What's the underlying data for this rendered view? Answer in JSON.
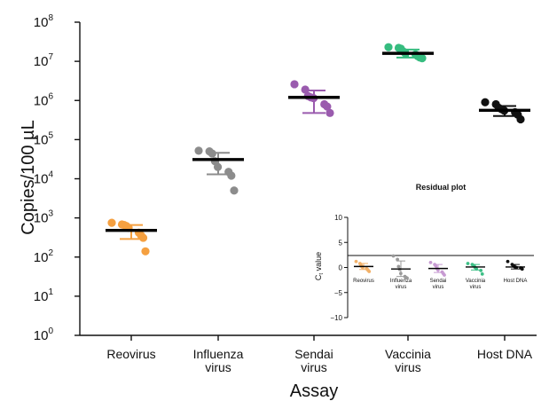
{
  "colors": {
    "Reovirus": "#F5A040",
    "Influenza virus": "#8C8C8C",
    "Sendai virus": "#9A5BAE",
    "Vaccinia virus": "#36BC7F",
    "Host DNA": "#111111",
    "inset": {
      "Reovirus": "#F2B169",
      "Influenza virus": "#9A9A9A",
      "Sendai virus": "#C79AD2",
      "Vaccinia virus": "#3CBF86",
      "Host DNA": "#111111"
    }
  },
  "chart_data": [
    {
      "id": "main",
      "type": "scatter",
      "scale": "log10",
      "ylabel": "Copies/100 µL",
      "xlabel": "Assay",
      "ylim": [
        1,
        100000000
      ],
      "y_ticks": [
        {
          "base": "10",
          "exp": "0"
        },
        {
          "base": "10",
          "exp": "1"
        },
        {
          "base": "10",
          "exp": "2"
        },
        {
          "base": "10",
          "exp": "3"
        },
        {
          "base": "10",
          "exp": "4"
        },
        {
          "base": "10",
          "exp": "5"
        },
        {
          "base": "10",
          "exp": "6"
        },
        {
          "base": "10",
          "exp": "7"
        },
        {
          "base": "10",
          "exp": "8"
        }
      ],
      "categories": [
        [
          "Reovirus"
        ],
        [
          "Influenza",
          "virus"
        ],
        [
          "Sendai",
          "virus"
        ],
        [
          "Vaccinia",
          "virus"
        ],
        [
          "Host DNA"
        ]
      ],
      "groups": [
        {
          "name": "Reovirus",
          "mean": 480,
          "sd_low": 290,
          "sd_high": 660,
          "points": [
            750,
            680,
            660,
            620,
            560,
            420,
            360,
            310,
            140
          ]
        },
        {
          "name": "Influenza virus",
          "mean": 31000,
          "sd_low": 13000,
          "sd_high": 46000,
          "points": [
            52000,
            50000,
            44000,
            28000,
            20000,
            15000,
            12000,
            5000
          ]
        },
        {
          "name": "Sendai virus",
          "mean": 1200000,
          "sd_low": 480000,
          "sd_high": 1800000,
          "points": [
            2600000,
            1900000,
            1300000,
            1200000,
            1150000,
            800000,
            700000,
            480000
          ]
        },
        {
          "name": "Vaccinia virus",
          "mean": 16000000,
          "sd_low": 12500000,
          "sd_high": 20000000,
          "points": [
            23000000,
            22000000,
            21000000,
            18000000,
            16000000,
            15000000,
            13500000,
            12500000,
            12000000
          ]
        },
        {
          "name": "Host DNA",
          "mean": 560000,
          "sd_low": 400000,
          "sd_high": 720000,
          "points": [
            900000,
            800000,
            650000,
            600000,
            550000,
            500000,
            430000,
            330000
          ]
        }
      ]
    },
    {
      "id": "inset",
      "type": "scatter",
      "title": "Residual plot",
      "ylabel_main": "C",
      "ylabel_sub": "t",
      "ylabel_rest": " value",
      "ylim": [
        -10,
        10
      ],
      "y_ticks": [
        "10",
        "5",
        "0",
        "−5",
        "−10"
      ],
      "y_tick_values": [
        10,
        5,
        0,
        -5,
        -10
      ],
      "categories": [
        [
          "Reovirus"
        ],
        [
          "Influenza",
          "virus"
        ],
        [
          "Sendai",
          "virus"
        ],
        [
          "Vaccinia",
          "virus"
        ],
        [
          "Host DNA"
        ]
      ],
      "groups": [
        {
          "name": "Reovirus",
          "mean": 0.2,
          "sd_low": -0.4,
          "sd_high": 0.8,
          "points": [
            1.2,
            0.8,
            0.5,
            0.2,
            0.0,
            -0.2,
            -0.4,
            -0.6,
            -0.8
          ]
        },
        {
          "name": "Influenza virus",
          "mean": -0.3,
          "sd_low": -1.8,
          "sd_high": 1.3,
          "points": [
            2.3,
            1.6,
            0.2,
            -0.4,
            -1.2,
            -1.8,
            -2.0,
            -2.1
          ]
        },
        {
          "name": "Sendai virus",
          "mean": -0.2,
          "sd_low": -1.0,
          "sd_high": 0.6,
          "points": [
            1.0,
            0.6,
            0.3,
            -0.2,
            -0.5,
            -0.9,
            -1.2,
            -1.5
          ]
        },
        {
          "name": "Vaccinia virus",
          "mean": 0.1,
          "sd_low": -0.5,
          "sd_high": 0.6,
          "points": [
            0.8,
            0.6,
            0.4,
            0.0,
            -0.3,
            -0.6,
            -1.3
          ]
        },
        {
          "name": "Host DNA",
          "mean": 0.1,
          "sd_low": -0.3,
          "sd_high": 0.6,
          "points": [
            1.2,
            0.6,
            0.3,
            0.1,
            0.0,
            -0.1,
            -0.3
          ]
        }
      ]
    }
  ]
}
